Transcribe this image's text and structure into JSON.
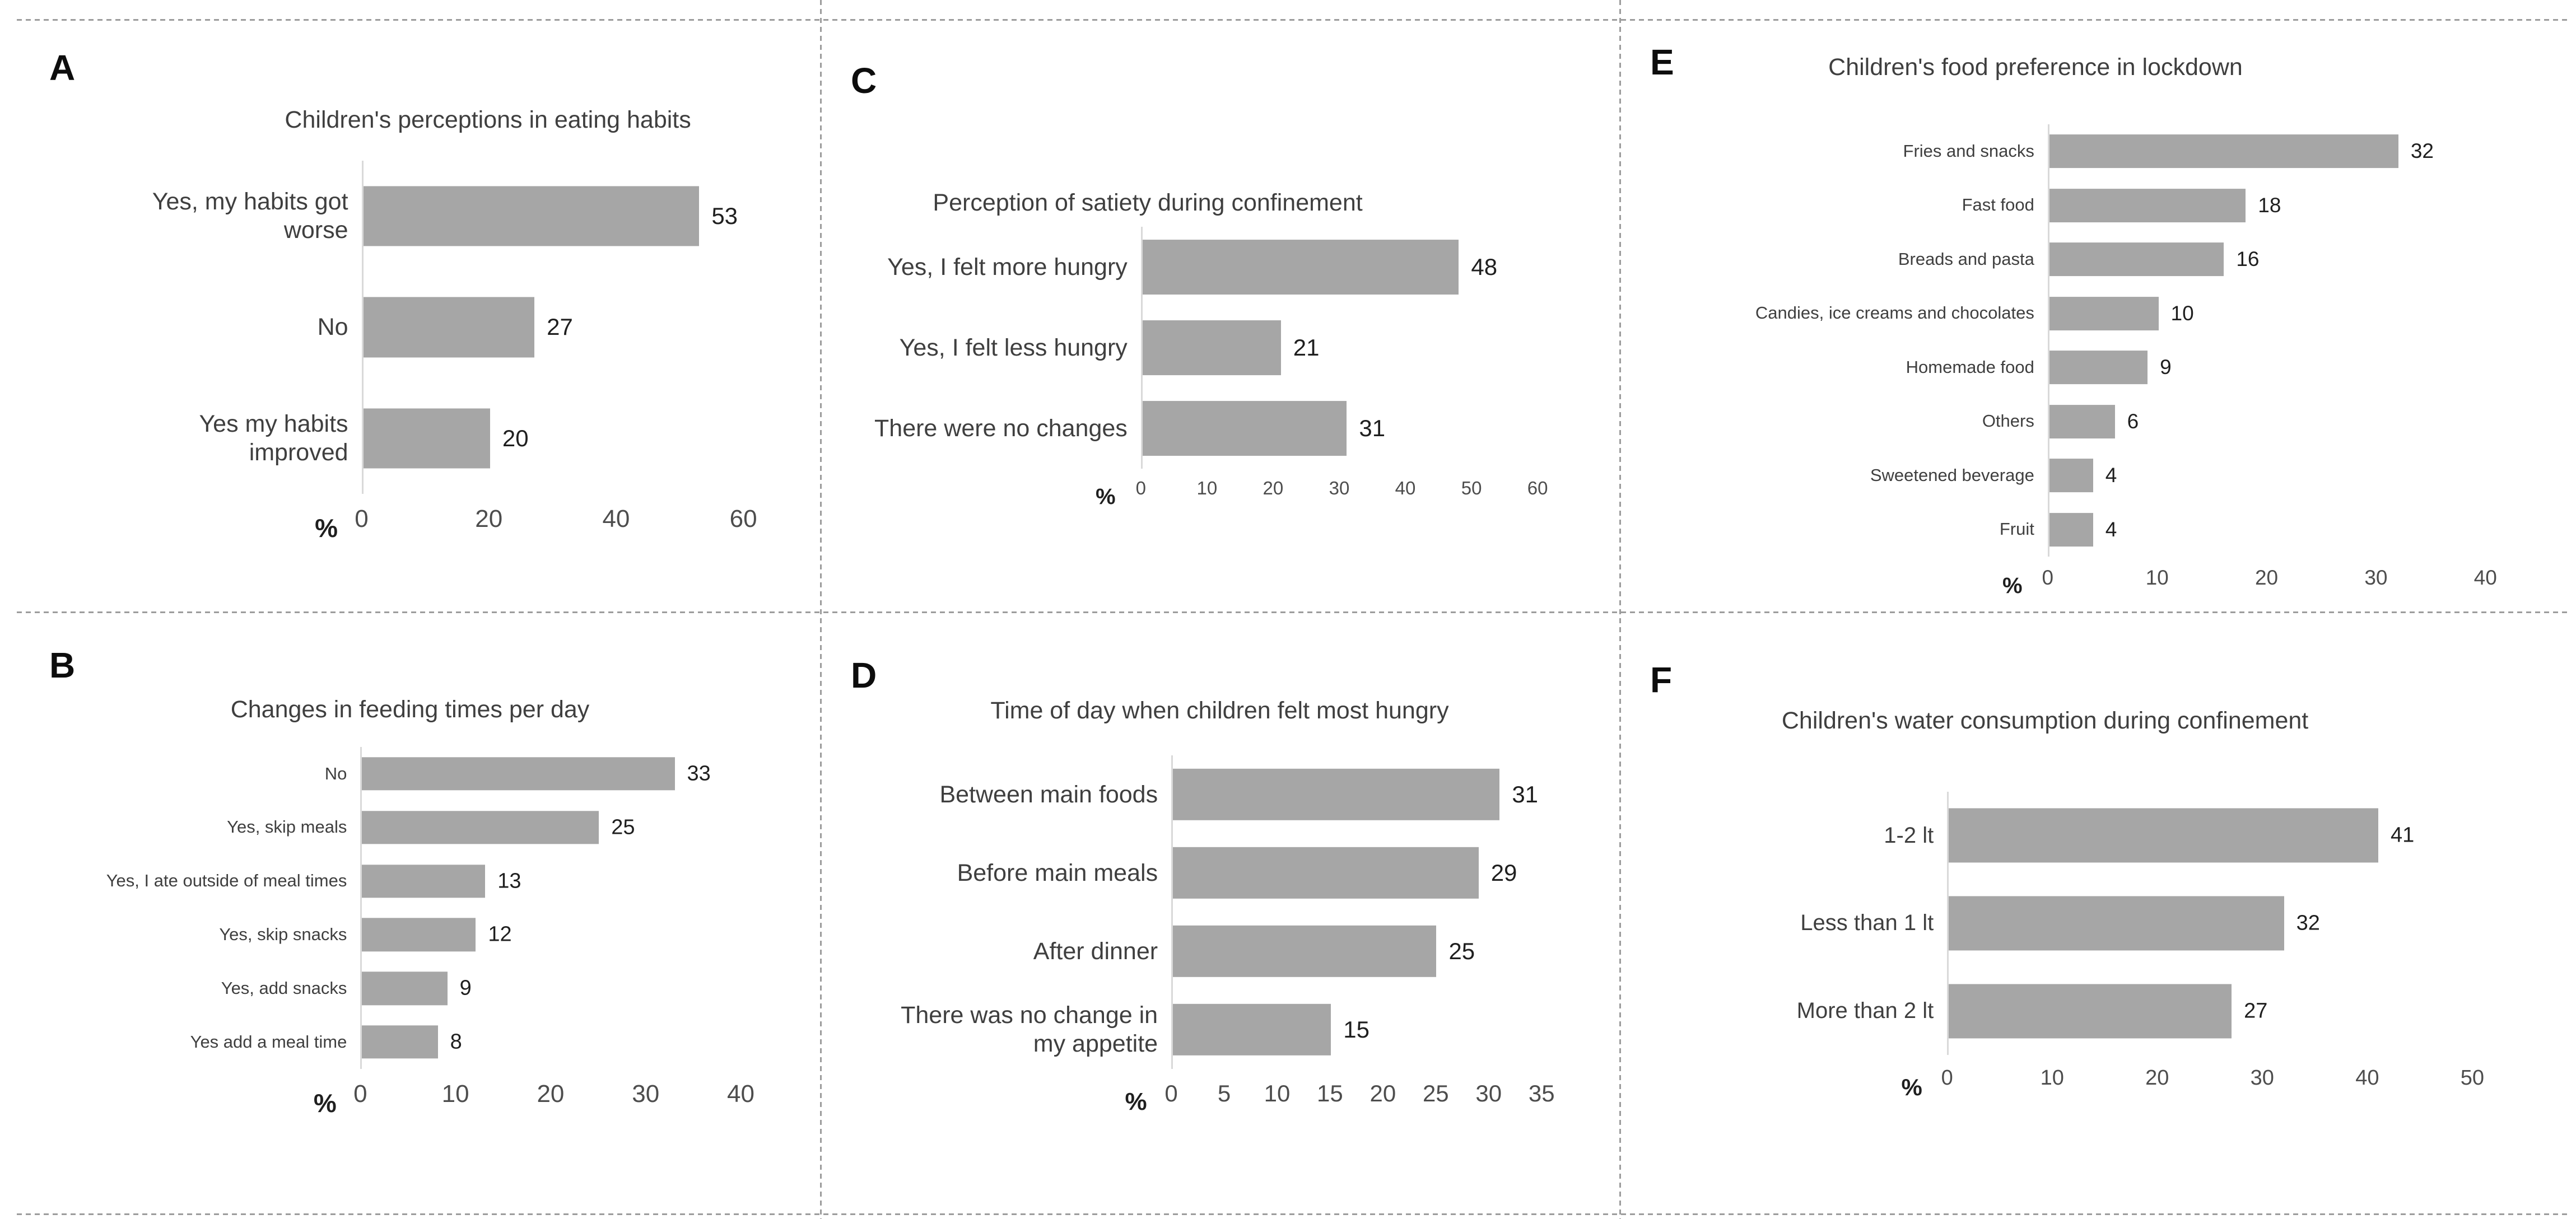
{
  "figure": {
    "background_color": "#ffffff",
    "bar_color": "#a6a6a6",
    "axis_line_color": "#d9d9d9",
    "separator_color": "#9c9c9c",
    "title_color": "#3f3f3f",
    "value_label_color": "#1f1f1f",
    "tick_label_color": "#4d4d4d"
  },
  "chart_data": [
    {
      "panel_label": "A",
      "type": "bar",
      "orientation": "horizontal",
      "title": "Children's perceptions in eating habits",
      "categories": [
        "Yes, my habits got worse",
        "No",
        "Yes my habits improved"
      ],
      "values": [
        53,
        27,
        20
      ],
      "xlabel": "%",
      "xticks": [
        0,
        20,
        40,
        60
      ],
      "xlim": [
        0,
        60
      ],
      "grid": false,
      "value_labels": true,
      "legend": null
    },
    {
      "panel_label": "B",
      "type": "bar",
      "orientation": "horizontal",
      "title": "Changes in feeding times per day",
      "categories": [
        "No",
        "Yes, skip meals",
        "Yes, I ate outside of meal times",
        "Yes, skip snacks",
        "Yes, add snacks",
        "Yes add a meal time"
      ],
      "values": [
        33,
        25,
        13,
        12,
        9,
        8
      ],
      "xlabel": "%",
      "xticks": [
        0,
        10,
        20,
        30,
        40
      ],
      "xlim": [
        0,
        40
      ],
      "grid": false,
      "value_labels": true,
      "legend": null
    },
    {
      "panel_label": "C",
      "type": "bar",
      "orientation": "horizontal",
      "title": "Perception of satiety during confinement",
      "categories": [
        "Yes, I felt more hungry",
        "Yes, I felt less hungry",
        "There were no changes"
      ],
      "values": [
        48,
        21,
        31
      ],
      "xlabel": "%",
      "xticks": [
        0,
        10,
        20,
        30,
        40,
        50,
        60
      ],
      "xlim": [
        0,
        60
      ],
      "grid": false,
      "value_labels": true,
      "legend": null
    },
    {
      "panel_label": "D",
      "type": "bar",
      "orientation": "horizontal",
      "title": "Time of day when children felt most hungry",
      "categories": [
        "Between main foods",
        "Before main meals",
        "After dinner",
        "There was no change in my appetite"
      ],
      "values": [
        31,
        29,
        25,
        15
      ],
      "xlabel": "%",
      "xticks": [
        0,
        5,
        10,
        15,
        20,
        25,
        30,
        35
      ],
      "xlim": [
        0,
        35
      ],
      "grid": false,
      "value_labels": true,
      "legend": null
    },
    {
      "panel_label": "E",
      "type": "bar",
      "orientation": "horizontal",
      "title": "Children's food preference in lockdown",
      "categories": [
        "Fries and snacks",
        "Fast food",
        "Breads and pasta",
        "Candies, ice creams and chocolates",
        "Homemade food",
        "Others",
        "Sweetened beverage",
        "Fruit"
      ],
      "values": [
        32,
        18,
        16,
        10,
        9,
        6,
        4,
        4
      ],
      "xlabel": "%",
      "xticks": [
        0,
        10,
        20,
        30,
        40
      ],
      "xlim": [
        0,
        40
      ],
      "grid": false,
      "value_labels": true,
      "legend": null
    },
    {
      "panel_label": "F",
      "type": "bar",
      "orientation": "horizontal",
      "title": "Children's water consumption during confinement",
      "categories": [
        "1-2 lt",
        "Less than 1 lt",
        "More than 2 lt"
      ],
      "values": [
        41,
        32,
        27
      ],
      "xlabel": "%",
      "xticks": [
        0,
        10,
        20,
        30,
        40,
        50
      ],
      "xlim": [
        0,
        50
      ],
      "grid": false,
      "value_labels": true,
      "legend": null
    }
  ]
}
